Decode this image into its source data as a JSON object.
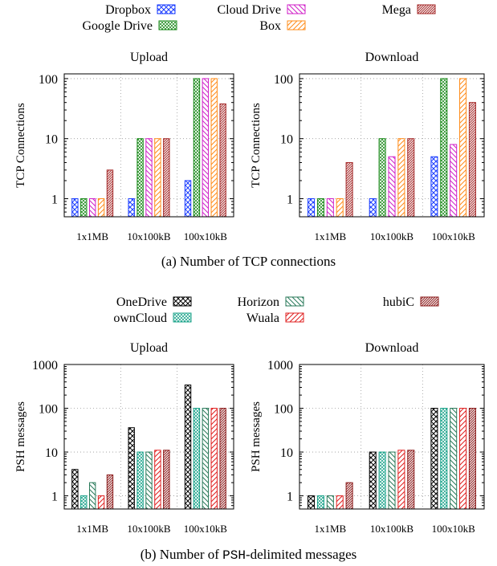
{
  "figure_a": {
    "caption": "(a) Number of TCP connections",
    "legend": [
      "Dropbox",
      "Google Drive",
      "Cloud Drive",
      "Box",
      "Mega"
    ]
  },
  "figure_b": {
    "caption_prefix": "(b) Number of ",
    "caption_code": "PSH",
    "caption_suffix": "-delimited messages",
    "legend": [
      "OneDrive",
      "ownCloud",
      "Horizon",
      "Wuala",
      "hubiC"
    ]
  },
  "chart_data": [
    {
      "type": "bar",
      "title": "Upload",
      "ylabel": "TCP Connections",
      "log_scale": true,
      "ylim": [
        0.5,
        120
      ],
      "yticks": [
        1,
        10,
        100
      ],
      "grid": true,
      "categories": [
        "1x1MB",
        "10x100kB",
        "100x10kB"
      ],
      "series": [
        {
          "name": "Dropbox",
          "values": [
            1,
            1,
            2
          ]
        },
        {
          "name": "Google Drive",
          "values": [
            1,
            10,
            100
          ]
        },
        {
          "name": "Cloud Drive",
          "values": [
            1,
            10,
            100
          ]
        },
        {
          "name": "Box",
          "values": [
            1,
            10,
            100
          ]
        },
        {
          "name": "Mega",
          "values": [
            3,
            10,
            38
          ]
        }
      ]
    },
    {
      "type": "bar",
      "title": "Download",
      "ylabel": "TCP Connections",
      "log_scale": true,
      "ylim": [
        0.5,
        120
      ],
      "yticks": [
        1,
        10,
        100
      ],
      "grid": true,
      "categories": [
        "1x1MB",
        "10x100kB",
        "100x10kB"
      ],
      "series": [
        {
          "name": "Dropbox",
          "values": [
            1,
            1,
            5
          ]
        },
        {
          "name": "Google Drive",
          "values": [
            1,
            10,
            100
          ]
        },
        {
          "name": "Cloud Drive",
          "values": [
            1,
            5,
            8
          ]
        },
        {
          "name": "Box",
          "values": [
            1,
            10,
            100
          ]
        },
        {
          "name": "Mega",
          "values": [
            4,
            10,
            40
          ]
        }
      ]
    },
    {
      "type": "bar",
      "title": "Upload",
      "ylabel": "PSH messages",
      "log_scale": true,
      "ylim": [
        0.5,
        1000
      ],
      "yticks": [
        1,
        10,
        100,
        1000
      ],
      "grid": true,
      "categories": [
        "1x1MB",
        "10x100kB",
        "100x10kB"
      ],
      "series": [
        {
          "name": "OneDrive",
          "values": [
            4,
            36,
            340
          ]
        },
        {
          "name": "ownCloud",
          "values": [
            1,
            10,
            100
          ]
        },
        {
          "name": "Horizon",
          "values": [
            2,
            10,
            100
          ]
        },
        {
          "name": "Wuala",
          "values": [
            1,
            11,
            100
          ]
        },
        {
          "name": "hubiC",
          "values": [
            3,
            11,
            100
          ]
        }
      ]
    },
    {
      "type": "bar",
      "title": "Download",
      "ylabel": "PSH messages",
      "log_scale": true,
      "ylim": [
        0.5,
        1000
      ],
      "yticks": [
        1,
        10,
        100,
        1000
      ],
      "grid": true,
      "categories": [
        "1x1MB",
        "10x100kB",
        "100x10kB"
      ],
      "series": [
        {
          "name": "OneDrive",
          "values": [
            1,
            10,
            100
          ]
        },
        {
          "name": "ownCloud",
          "values": [
            1,
            10,
            100
          ]
        },
        {
          "name": "Horizon",
          "values": [
            1,
            10,
            100
          ]
        },
        {
          "name": "Wuala",
          "values": [
            1,
            11,
            100
          ]
        },
        {
          "name": "hubiC",
          "values": [
            2,
            11,
            100
          ]
        }
      ]
    }
  ],
  "series_colors": [
    "#1a3cff",
    "#1a8a1a",
    "#d022c8",
    "#ff8c1a",
    "#a52a2a"
  ],
  "series_colors_b": [
    "#000000",
    "#1aa38a",
    "#2a7a5a",
    "#e02020",
    "#8b1a1a"
  ]
}
